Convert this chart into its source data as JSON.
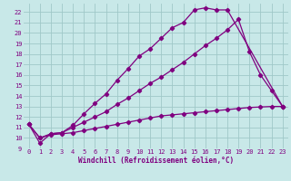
{
  "xlabel": "Windchill (Refroidissement éolien,°C)",
  "bg_color": "#c8e8e8",
  "line_color": "#800080",
  "xlim": [
    -0.5,
    23.5
  ],
  "ylim": [
    9.0,
    22.8
  ],
  "xticks": [
    0,
    1,
    2,
    3,
    4,
    5,
    6,
    7,
    8,
    9,
    10,
    11,
    12,
    13,
    14,
    15,
    16,
    17,
    18,
    19,
    20,
    21,
    22,
    23
  ],
  "yticks": [
    9,
    10,
    11,
    12,
    13,
    14,
    15,
    16,
    17,
    18,
    19,
    20,
    21,
    22
  ],
  "lines": [
    {
      "x": [
        0,
        1,
        2,
        3,
        4,
        5,
        6,
        7,
        8,
        9,
        10,
        11,
        12,
        13,
        14,
        15,
        16,
        17,
        18,
        23
      ],
      "y": [
        11.3,
        9.5,
        10.4,
        10.5,
        11.2,
        12.3,
        13.3,
        14.2,
        15.5,
        16.6,
        17.8,
        18.5,
        19.5,
        20.5,
        21.0,
        22.2,
        22.4,
        22.2,
        22.2,
        13.0
      ]
    },
    {
      "x": [
        0,
        1,
        2,
        3,
        4,
        5,
        6,
        7,
        8,
        9,
        10,
        11,
        12,
        13,
        14,
        15,
        16,
        17,
        18,
        19,
        20,
        21,
        22,
        23
      ],
      "y": [
        11.3,
        10.0,
        10.4,
        10.5,
        11.0,
        11.5,
        12.0,
        12.5,
        13.2,
        13.8,
        14.5,
        15.2,
        15.8,
        16.5,
        17.2,
        18.0,
        18.8,
        19.5,
        20.3,
        21.3,
        18.2,
        16.0,
        14.5,
        13.0
      ]
    },
    {
      "x": [
        0,
        1,
        2,
        3,
        4,
        5,
        6,
        7,
        8,
        9,
        10,
        11,
        12,
        13,
        14,
        15,
        16,
        17,
        18,
        19,
        20,
        21,
        22,
        23
      ],
      "y": [
        11.3,
        10.0,
        10.3,
        10.4,
        10.5,
        10.7,
        10.9,
        11.1,
        11.3,
        11.5,
        11.7,
        11.9,
        12.1,
        12.2,
        12.3,
        12.4,
        12.5,
        12.6,
        12.7,
        12.8,
        12.9,
        12.95,
        13.0,
        13.0
      ]
    }
  ],
  "grid_color": "#a0c8c8",
  "marker": "D",
  "markersize": 2.2,
  "linewidth": 0.9,
  "tick_fontsize": 5.0,
  "xlabel_fontsize": 5.5
}
